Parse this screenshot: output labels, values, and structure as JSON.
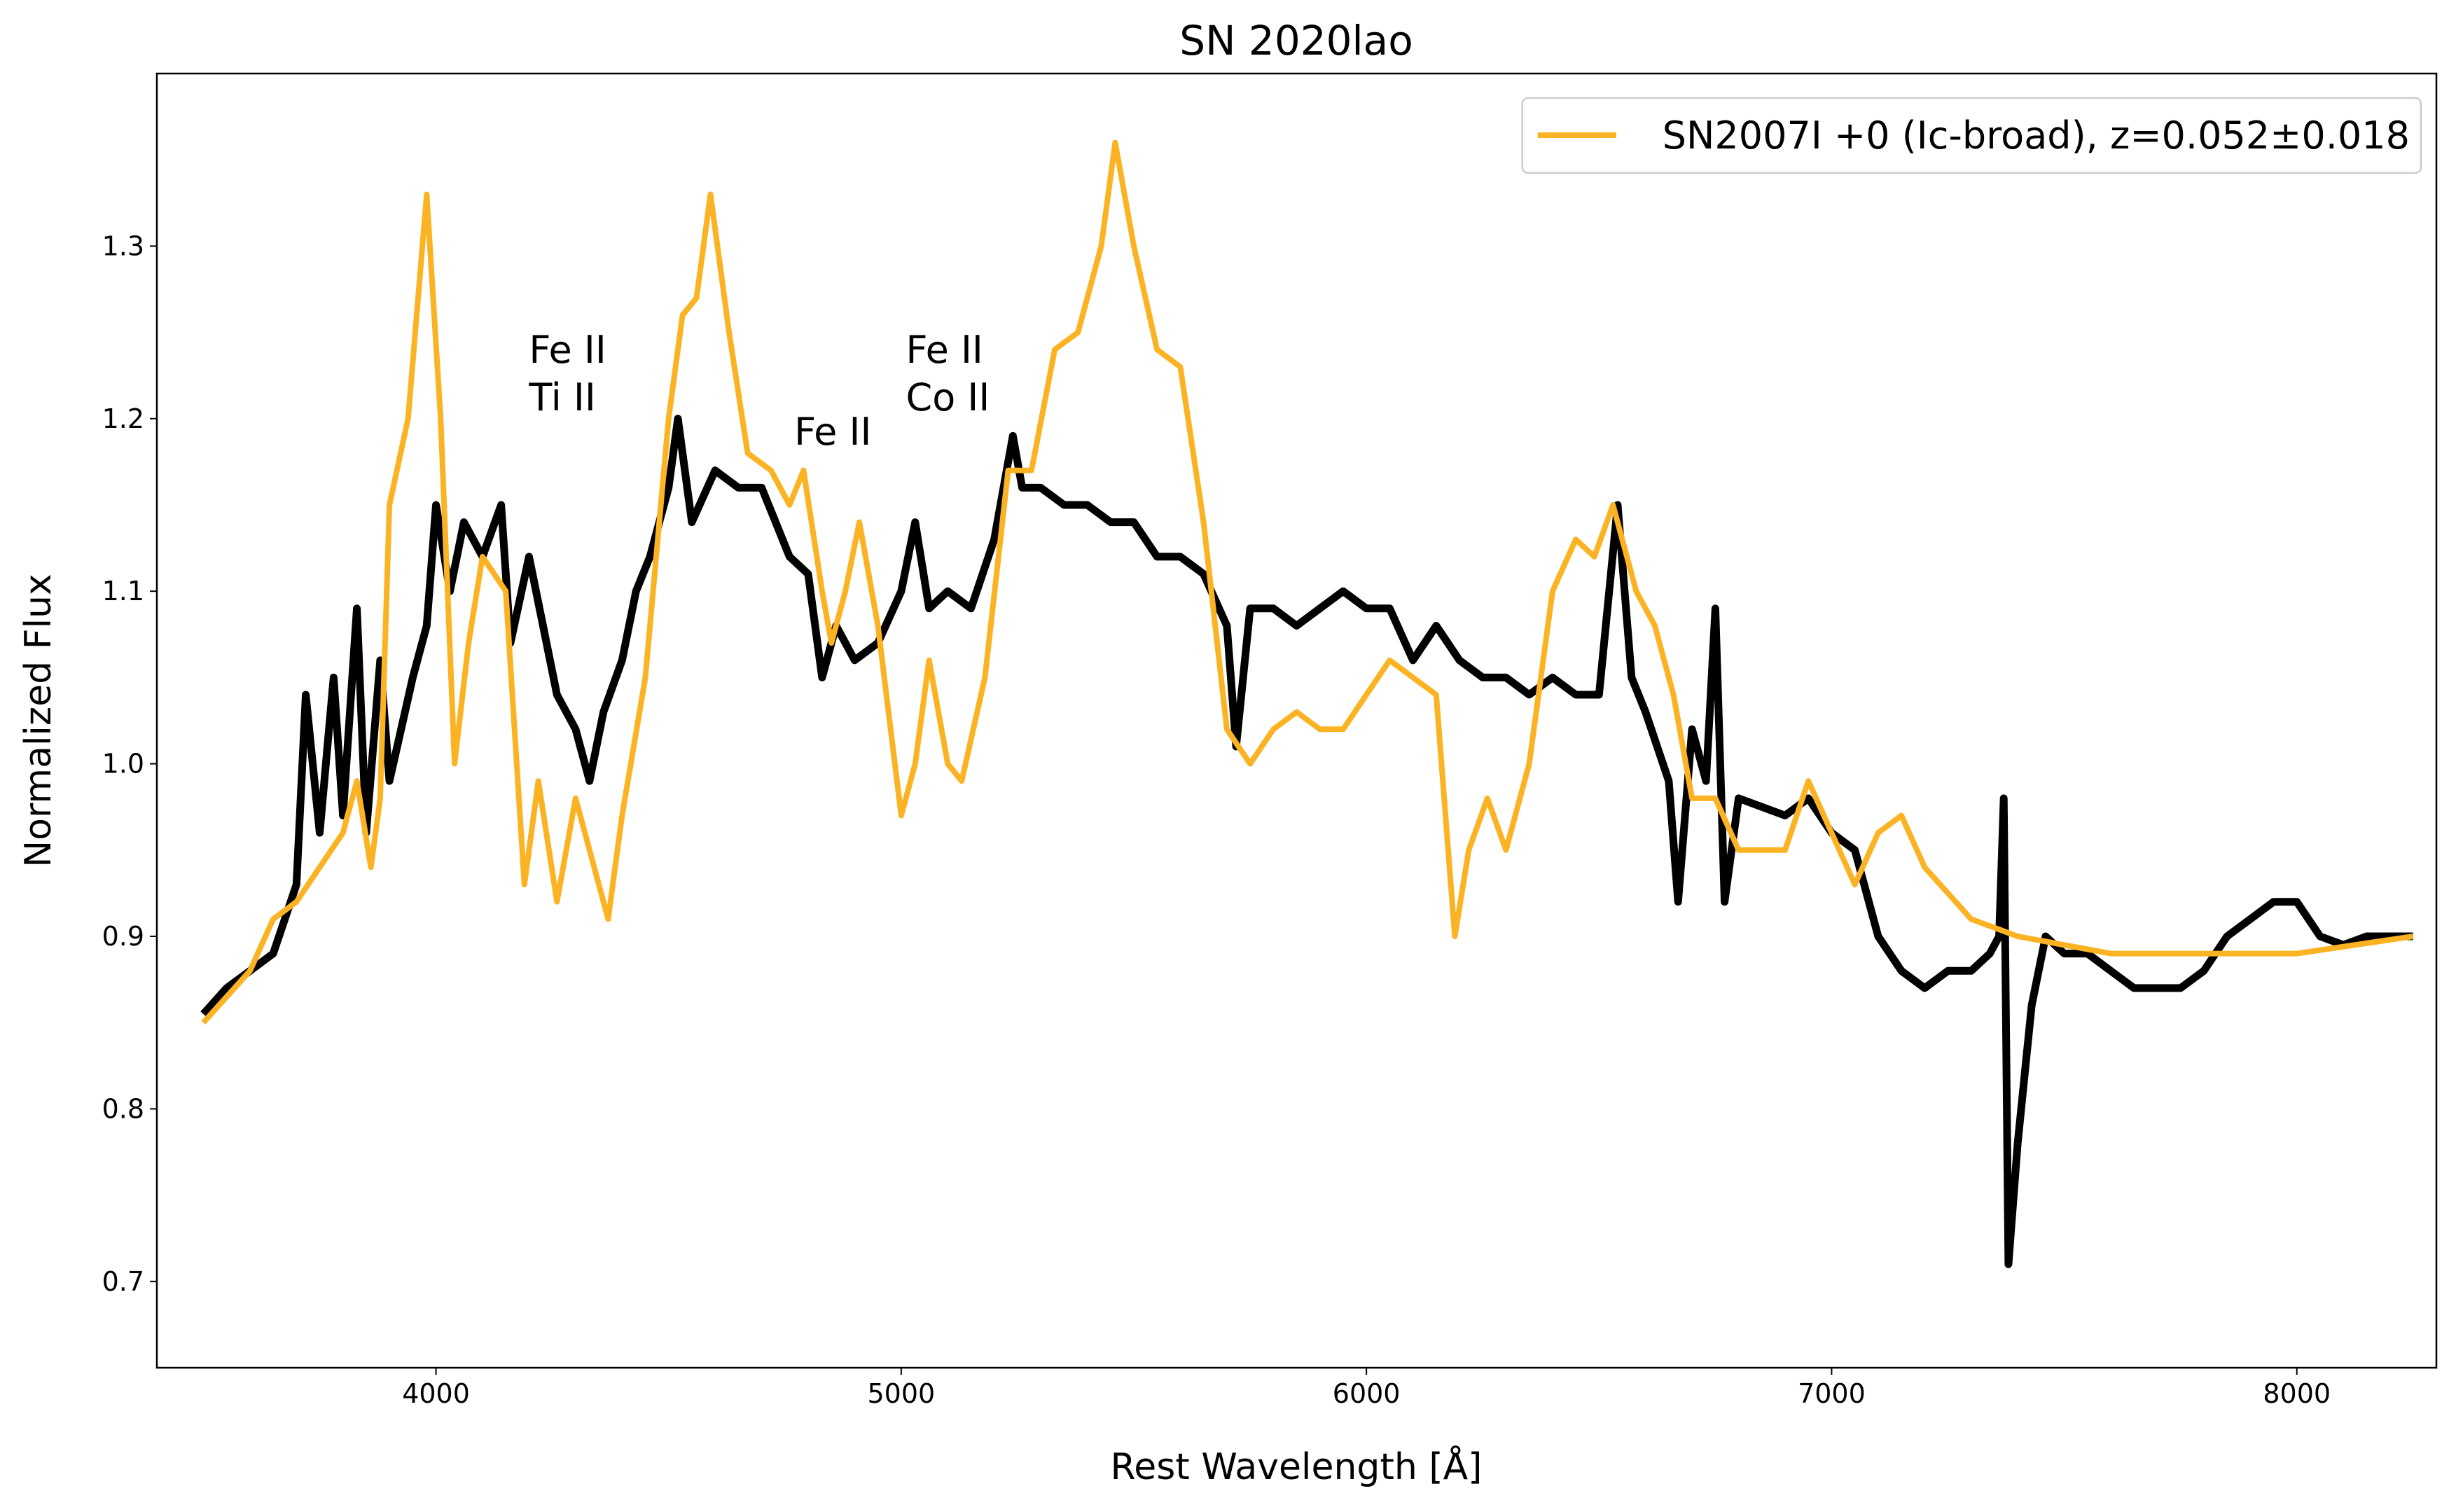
{
  "chart_data": {
    "type": "line",
    "title": "SN 2020lao",
    "xlabel": "Rest Wavelength [Å]",
    "ylabel": "Normalized Flux",
    "xlim": [
      3400,
      8300
    ],
    "ylim": [
      0.65,
      1.4
    ],
    "xticks": [
      4000,
      5000,
      6000,
      7000,
      8000
    ],
    "yticks": [
      0.7,
      0.8,
      0.9,
      1.0,
      1.1,
      1.2,
      1.3
    ],
    "legend": "upper right",
    "annotations": [
      {
        "text": [
          "Fe II",
          "Ti II"
        ],
        "x": 4200,
        "y": 1.2
      },
      {
        "text": [
          "Fe II"
        ],
        "x": 4770,
        "y": 1.18
      },
      {
        "text": [
          "Fe II",
          "Co II"
        ],
        "x": 5010,
        "y": 1.2
      }
    ],
    "series": [
      {
        "color": "#000000",
        "x": [
          3500,
          3550,
          3600,
          3650,
          3700,
          3720,
          3750,
          3780,
          3800,
          3830,
          3850,
          3880,
          3900,
          3950,
          3980,
          4000,
          4030,
          4060,
          4100,
          4140,
          4160,
          4200,
          4230,
          4260,
          4300,
          4330,
          4360,
          4400,
          4430,
          4460,
          4500,
          4520,
          4550,
          4600,
          4650,
          4700,
          4730,
          4760,
          4800,
          4830,
          4860,
          4900,
          4950,
          5000,
          5030,
          5060,
          5100,
          5150,
          5200,
          5240,
          5260,
          5300,
          5350,
          5400,
          5450,
          5500,
          5550,
          5600,
          5650,
          5700,
          5720,
          5750,
          5800,
          5850,
          5900,
          5950,
          6000,
          6050,
          6100,
          6150,
          6200,
          6250,
          6300,
          6350,
          6400,
          6450,
          6500,
          6540,
          6570,
          6600,
          6650,
          6670,
          6700,
          6730,
          6750,
          6770,
          6800,
          6850,
          6900,
          6950,
          7000,
          7050,
          7100,
          7150,
          7200,
          7250,
          7300,
          7340,
          7360,
          7370,
          7380,
          7400,
          7430,
          7460,
          7500,
          7550,
          7600,
          7650,
          7700,
          7750,
          7800,
          7850,
          7900,
          7950,
          8000,
          8050,
          8100,
          8150,
          8200,
          8250
        ],
        "values": [
          0.855,
          0.87,
          0.88,
          0.89,
          0.93,
          1.04,
          0.96,
          1.05,
          0.97,
          1.09,
          0.96,
          1.06,
          0.99,
          1.05,
          1.08,
          1.15,
          1.1,
          1.14,
          1.12,
          1.15,
          1.07,
          1.12,
          1.08,
          1.04,
          1.02,
          0.99,
          1.03,
          1.06,
          1.1,
          1.12,
          1.16,
          1.2,
          1.14,
          1.17,
          1.16,
          1.16,
          1.14,
          1.12,
          1.11,
          1.05,
          1.08,
          1.06,
          1.07,
          1.1,
          1.14,
          1.09,
          1.1,
          1.09,
          1.13,
          1.19,
          1.16,
          1.16,
          1.15,
          1.15,
          1.14,
          1.14,
          1.12,
          1.12,
          1.11,
          1.08,
          1.01,
          1.09,
          1.09,
          1.08,
          1.09,
          1.1,
          1.09,
          1.09,
          1.06,
          1.08,
          1.06,
          1.05,
          1.05,
          1.04,
          1.05,
          1.04,
          1.04,
          1.15,
          1.05,
          1.03,
          0.99,
          0.92,
          1.02,
          0.99,
          1.09,
          0.92,
          0.98,
          0.975,
          0.97,
          0.98,
          0.96,
          0.95,
          0.9,
          0.88,
          0.87,
          0.88,
          0.88,
          0.89,
          0.9,
          0.98,
          0.71,
          0.78,
          0.86,
          0.9,
          0.89,
          0.89,
          0.88,
          0.87,
          0.87,
          0.87,
          0.88,
          0.9,
          0.91,
          0.92,
          0.92,
          0.9,
          0.895,
          0.9,
          0.9,
          0.9
        ]
      },
      {
        "name": "SN2007I +0 (Ic-broad), z=0.052±0.018",
        "color": "#fbb324",
        "x": [
          3500,
          3600,
          3650,
          3700,
          3750,
          3800,
          3830,
          3860,
          3880,
          3900,
          3940,
          3980,
          4010,
          4040,
          4070,
          4100,
          4150,
          4190,
          4220,
          4260,
          4300,
          4370,
          4400,
          4450,
          4500,
          4530,
          4560,
          4590,
          4630,
          4670,
          4720,
          4760,
          4790,
          4830,
          4850,
          4880,
          4910,
          4950,
          5000,
          5030,
          5060,
          5100,
          5130,
          5180,
          5230,
          5280,
          5330,
          5380,
          5430,
          5460,
          5500,
          5550,
          5600,
          5650,
          5700,
          5750,
          5800,
          5850,
          5900,
          5950,
          6000,
          6050,
          6100,
          6150,
          6190,
          6220,
          6260,
          6300,
          6350,
          6400,
          6450,
          6490,
          6530,
          6580,
          6620,
          6660,
          6700,
          6750,
          6800,
          6850,
          6900,
          6950,
          7000,
          7050,
          7100,
          7150,
          7200,
          7300,
          7400,
          7500,
          7600,
          7800,
          8000,
          8250
        ],
        "values": [
          0.85,
          0.88,
          0.91,
          0.92,
          0.94,
          0.96,
          0.99,
          0.94,
          0.98,
          1.15,
          1.2,
          1.33,
          1.2,
          1.0,
          1.07,
          1.12,
          1.1,
          0.93,
          0.99,
          0.92,
          0.98,
          0.91,
          0.97,
          1.05,
          1.2,
          1.26,
          1.27,
          1.33,
          1.25,
          1.18,
          1.17,
          1.15,
          1.17,
          1.1,
          1.07,
          1.1,
          1.14,
          1.08,
          0.97,
          1.0,
          1.06,
          1.0,
          0.99,
          1.05,
          1.17,
          1.17,
          1.24,
          1.25,
          1.3,
          1.36,
          1.3,
          1.24,
          1.23,
          1.14,
          1.02,
          1.0,
          1.02,
          1.03,
          1.02,
          1.02,
          1.04,
          1.06,
          1.05,
          1.04,
          0.9,
          0.95,
          0.98,
          0.95,
          1.0,
          1.1,
          1.13,
          1.12,
          1.15,
          1.1,
          1.08,
          1.04,
          0.98,
          0.98,
          0.95,
          0.95,
          0.95,
          0.99,
          0.96,
          0.93,
          0.96,
          0.97,
          0.94,
          0.91,
          0.9,
          0.895,
          0.89,
          0.89,
          0.89,
          0.9
        ]
      }
    ]
  }
}
